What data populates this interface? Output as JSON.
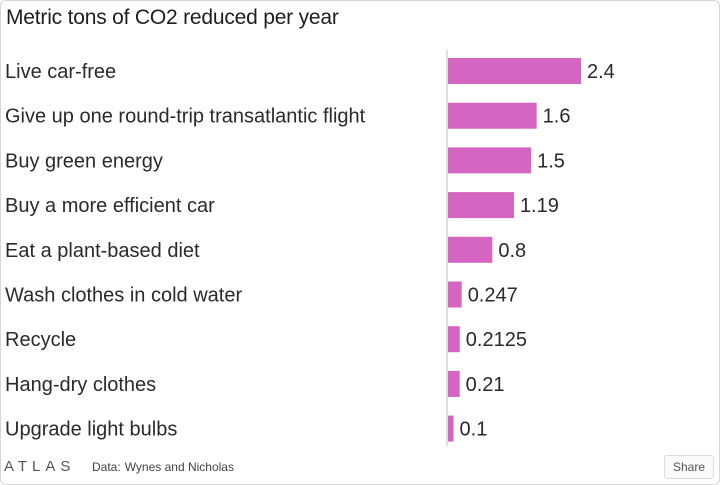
{
  "chart_data": {
    "type": "bar",
    "orientation": "horizontal",
    "title": "Metric tons of CO2 reduced per year",
    "categories": [
      "Live car-free",
      "Give up one round-trip transatlantic flight",
      "Buy green energy",
      "Buy a more efficient car",
      "Eat a plant-based diet",
      "Wash clothes in cold water",
      "Recycle",
      "Hang-dry clothes",
      "Upgrade light bulbs"
    ],
    "values": [
      2.4,
      1.6,
      1.5,
      1.19,
      0.8,
      0.247,
      0.2125,
      0.21,
      0.1
    ],
    "value_labels": [
      "2.4",
      "1.6",
      "1.5",
      "1.19",
      "0.8",
      "0.247",
      "0.2125",
      "0.21",
      "0.1"
    ],
    "xlim": [
      0,
      2.4
    ],
    "grid": false,
    "bar_color": "#d465c0"
  },
  "footer": {
    "logo": "ATLAS",
    "source_prefix": "Data:",
    "source_name": "Wynes and Nicholas",
    "share_label": "Share"
  }
}
